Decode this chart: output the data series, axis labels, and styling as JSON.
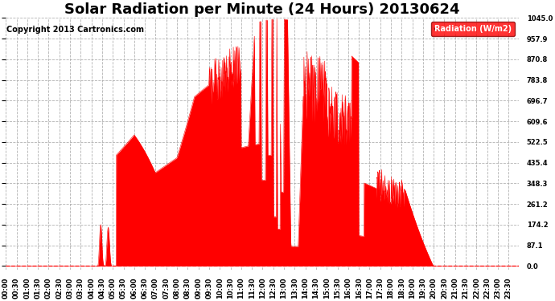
{
  "title": "Solar Radiation per Minute (24 Hours) 20130624",
  "copyright_text": "Copyright 2013 Cartronics.com",
  "legend_label": "Radiation (W/m2)",
  "ymax": 1045.0,
  "yticks": [
    0.0,
    87.1,
    174.2,
    261.2,
    348.3,
    435.4,
    522.5,
    609.6,
    696.7,
    783.8,
    870.8,
    957.9,
    1045.0
  ],
  "fill_color": "#FF0000",
  "line_color": "#FF0000",
  "zero_line_color": "#FF0000",
  "background_color": "#FFFFFF",
  "grid_color": "#AAAAAA",
  "title_fontsize": 13,
  "copyright_fontsize": 7,
  "tick_fontsize": 6,
  "legend_fontsize": 7
}
